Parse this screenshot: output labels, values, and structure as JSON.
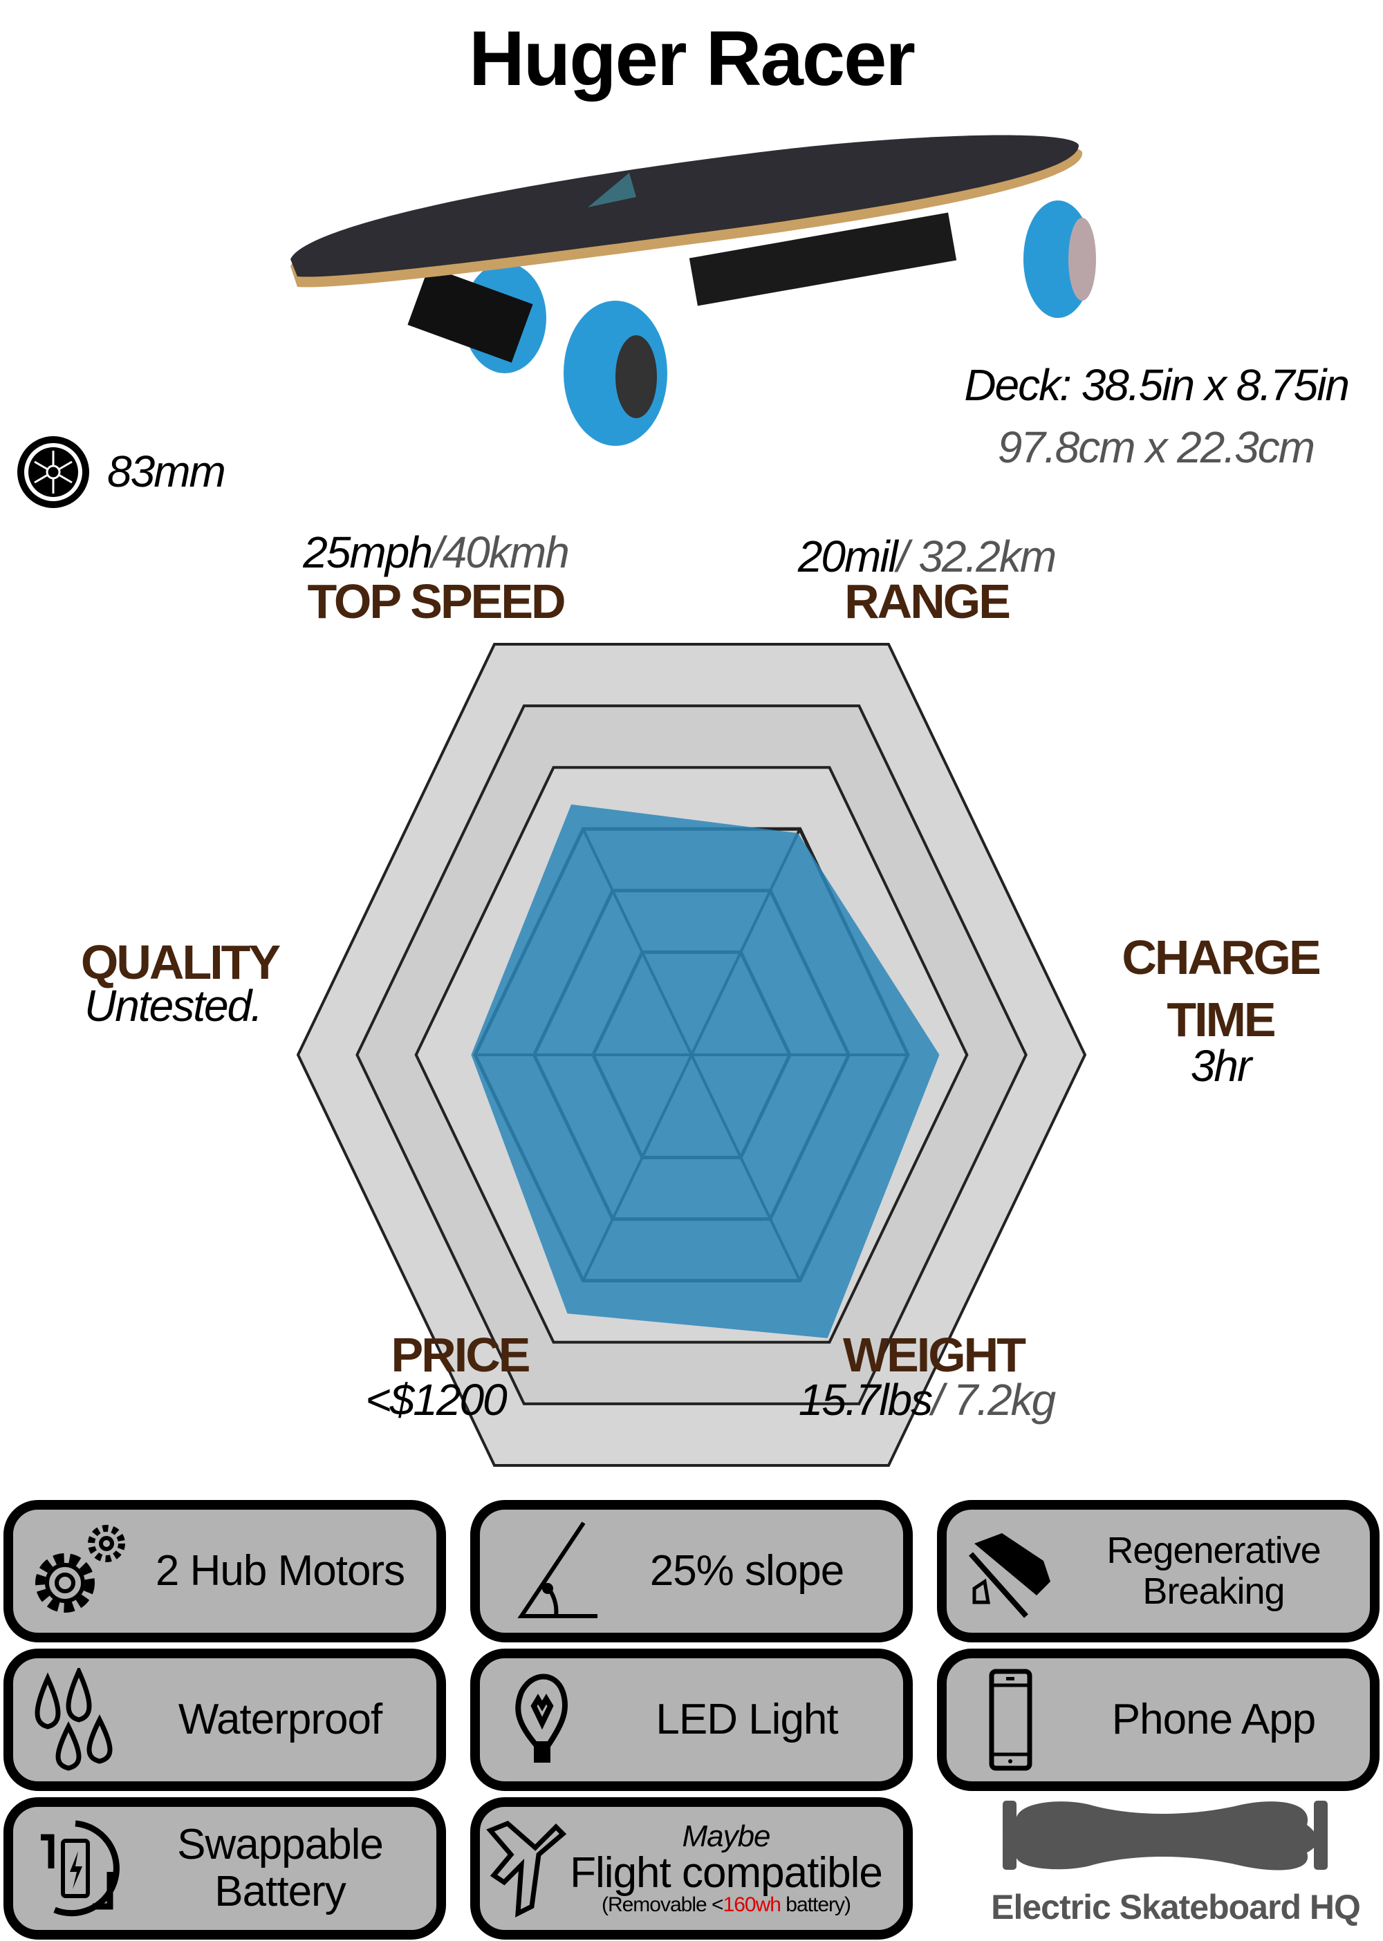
{
  "title": "Huger Racer",
  "deck": {
    "imperial": "Deck: 38.5in x 8.75in",
    "metric": "97.8cm x 22.3cm"
  },
  "wheel": {
    "icon": "wheel-icon",
    "size": "83mm"
  },
  "radar": {
    "top_speed": {
      "label": "TOP SPEED",
      "value_imperial": "25mph",
      "value_metric": "/40kmh"
    },
    "range": {
      "label": "RANGE",
      "value_imperial": "20mil",
      "value_metric": "/ 32.2km"
    },
    "charge_time": {
      "label_line1": "CHARGE",
      "label_line2": "TIME",
      "value": "3hr"
    },
    "weight": {
      "label": "WEIGHT",
      "value_imperial": "15.7lbs",
      "value_metric": "/ 7.2kg"
    },
    "price": {
      "label": "PRICE",
      "value": "<$1200"
    },
    "quality": {
      "label": "QUALITY",
      "value": "Untested."
    }
  },
  "chart_data": {
    "type": "radar",
    "axes": [
      "TOP SPEED",
      "RANGE",
      "CHARGE TIME",
      "WEIGHT",
      "PRICE",
      "QUALITY"
    ],
    "values": [
      61,
      54,
      63,
      69,
      63,
      56
    ],
    "scale_max": 100,
    "rings": [
      25,
      40,
      55,
      70,
      85,
      100
    ],
    "fill_color": "#2b86b8",
    "grid_colors": [
      "#d6d6d6",
      "#cdcdcd"
    ]
  },
  "features": [
    {
      "icon": "gears-icon",
      "lines": [
        "2 Hub Motors"
      ]
    },
    {
      "icon": "slope-angle-icon",
      "lines": [
        "25% slope"
      ]
    },
    {
      "icon": "regenerative-brake-shoe-icon",
      "lines": [
        "Regenerative",
        "Breaking"
      ]
    },
    {
      "icon": "water-drops-icon",
      "lines": [
        "Waterproof"
      ]
    },
    {
      "icon": "light-bulb-icon",
      "lines": [
        "LED Light"
      ]
    },
    {
      "icon": "smartphone-icon",
      "lines": [
        "Phone App"
      ]
    },
    {
      "icon": "swap-battery-icon",
      "lines": [
        "Swappable",
        "Battery"
      ]
    },
    {
      "icon": "airplane-icon",
      "maybe": "Maybe",
      "lines": [
        "Flight compatible"
      ],
      "note_pre": "(Removable <",
      "note_red": "160wh",
      "note_post": " battery)"
    }
  ],
  "logo": {
    "text": "Electric Skateboard HQ",
    "color": "#555555"
  }
}
